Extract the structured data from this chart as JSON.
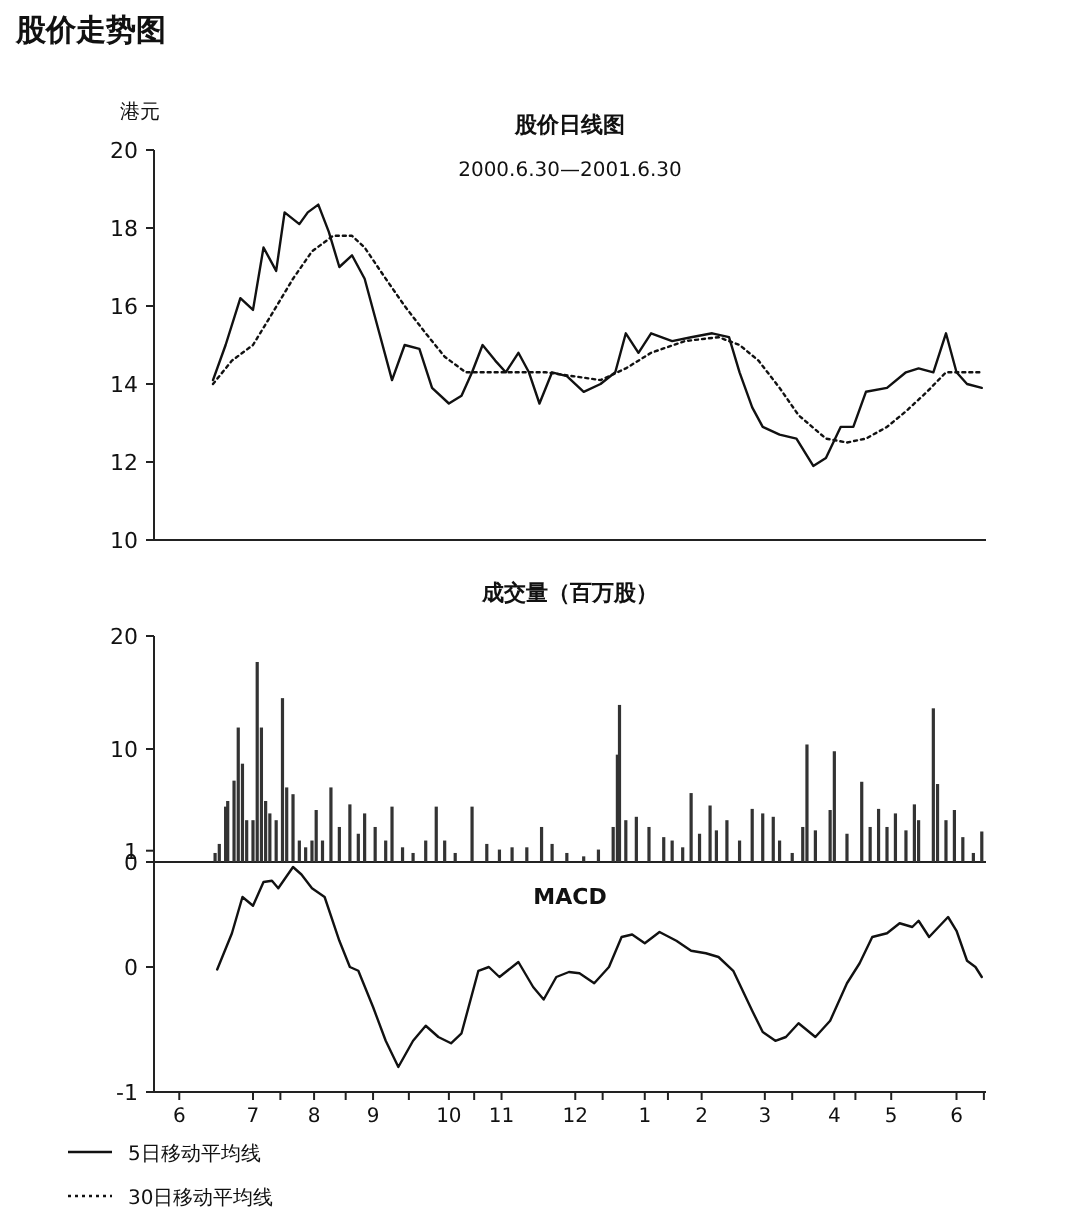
{
  "chart_data": [
    {
      "type": "line",
      "title": "股价日线图",
      "subtitle": "2000.6.30—2001.6.30",
      "ylabel": "港元",
      "annotations": [
        "股价走势图"
      ],
      "ylim": [
        10,
        20
      ],
      "yticks": [
        10,
        12,
        14,
        16,
        18,
        20
      ],
      "xlim": [
        "2000-06-02",
        "2001-07-02"
      ],
      "tick_labels": "y",
      "legend": "bottom",
      "series": [
        {
          "name": "5日移动平均线",
          "color": "#111111",
          "line_style": "solid",
          "x": [
            "2000-06-30",
            "2000-07-06",
            "2000-07-13",
            "2000-07-19",
            "2000-07-24",
            "2000-07-30",
            "2000-08-03",
            "2000-08-10",
            "2000-08-14",
            "2000-08-19",
            "2000-08-24",
            "2000-08-29",
            "2000-09-04",
            "2000-09-10",
            "2000-09-17",
            "2000-09-23",
            "2000-09-29",
            "2000-10-06",
            "2000-10-12",
            "2000-10-20",
            "2000-10-26",
            "2000-10-31",
            "2000-11-05",
            "2000-11-11",
            "2000-11-16",
            "2000-11-22",
            "2000-11-27",
            "2000-12-02",
            "2000-12-08",
            "2000-12-15",
            "2000-12-23",
            "2000-12-31",
            "2001-01-07",
            "2001-01-12",
            "2001-01-18",
            "2001-01-24",
            "2001-02-03",
            "2001-02-12",
            "2001-02-22",
            "2001-03-02",
            "2001-03-07",
            "2001-03-13",
            "2001-03-18",
            "2001-03-26",
            "2001-04-03",
            "2001-04-11",
            "2001-04-17",
            "2001-04-24",
            "2001-04-30",
            "2001-05-06",
            "2001-05-16",
            "2001-05-25",
            "2001-05-31",
            "2001-06-07",
            "2001-06-13",
            "2001-06-18",
            "2001-06-23",
            "2001-06-30"
          ],
          "values": [
            14.1,
            15.0,
            16.2,
            15.9,
            17.5,
            16.9,
            18.4,
            18.1,
            18.4,
            18.6,
            17.9,
            17.0,
            17.3,
            16.7,
            15.3,
            14.1,
            15.0,
            14.9,
            13.9,
            13.5,
            13.7,
            14.3,
            15.0,
            14.6,
            14.3,
            14.8,
            14.3,
            13.5,
            14.3,
            14.2,
            13.8,
            14.0,
            14.3,
            15.3,
            14.8,
            15.3,
            15.1,
            15.2,
            15.3,
            15.2,
            14.3,
            13.4,
            12.9,
            12.7,
            12.6,
            11.9,
            12.1,
            12.9,
            12.9,
            13.8,
            13.9,
            14.3,
            14.4,
            14.3,
            15.3,
            14.3,
            14.0,
            13.9
          ]
        },
        {
          "name": "30日移动平均线",
          "color": "#111111",
          "line_style": "dotted",
          "x": [
            "2000-06-30",
            "2000-07-09",
            "2000-07-19",
            "2000-07-28",
            "2000-08-07",
            "2000-08-16",
            "2000-08-26",
            "2000-09-04",
            "2000-09-10",
            "2000-09-20",
            "2000-09-29",
            "2000-10-09",
            "2000-10-18",
            "2000-10-28",
            "2000-11-10",
            "2000-11-22",
            "2000-12-05",
            "2000-12-18",
            "2000-12-31",
            "2001-01-12",
            "2001-01-24",
            "2001-02-09",
            "2001-02-25",
            "2001-03-07",
            "2001-03-16",
            "2001-03-26",
            "2001-04-04",
            "2001-04-17",
            "2001-04-27",
            "2001-05-06",
            "2001-05-16",
            "2001-05-25",
            "2001-06-04",
            "2001-06-13",
            "2001-06-23",
            "2001-06-30"
          ],
          "values": [
            14.0,
            14.6,
            15.0,
            15.8,
            16.7,
            17.4,
            17.8,
            17.8,
            17.5,
            16.7,
            16.0,
            15.3,
            14.7,
            14.3,
            14.3,
            14.3,
            14.3,
            14.2,
            14.1,
            14.4,
            14.8,
            15.1,
            15.2,
            15.0,
            14.6,
            13.9,
            13.2,
            12.6,
            12.5,
            12.6,
            12.9,
            13.3,
            13.8,
            14.3,
            14.3,
            14.3
          ]
        }
      ]
    },
    {
      "type": "bar",
      "title": "成交量（百万股）",
      "ylim": [
        0,
        20
      ],
      "yticks": [
        0,
        1,
        10,
        20
      ],
      "xlim": [
        "2000-06-02",
        "2001-07-02"
      ],
      "tick_labels": "y",
      "series": [
        {
          "color": "#333333",
          "x": [
            "2000-07-01",
            "2000-07-03",
            "2000-07-06",
            "2000-07-07",
            "2000-07-10",
            "2000-07-12",
            "2000-07-14",
            "2000-07-16",
            "2000-07-19",
            "2000-07-21",
            "2000-07-23",
            "2000-07-25",
            "2000-07-27",
            "2000-07-30",
            "2000-08-02",
            "2000-08-04",
            "2000-08-07",
            "2000-08-10",
            "2000-08-13",
            "2000-08-16",
            "2000-08-18",
            "2000-08-21",
            "2000-08-25",
            "2000-08-29",
            "2000-09-03",
            "2000-09-07",
            "2000-09-10",
            "2000-09-15",
            "2000-09-20",
            "2000-09-23",
            "2000-09-28",
            "2000-10-03",
            "2000-10-09",
            "2000-10-14",
            "2000-10-18",
            "2000-10-23",
            "2000-10-31",
            "2000-11-07",
            "2000-11-13",
            "2000-11-19",
            "2000-11-26",
            "2000-12-03",
            "2000-12-08",
            "2000-12-15",
            "2000-12-23",
            "2000-12-30",
            "2001-01-06",
            "2001-01-08",
            "2001-01-09",
            "2001-01-12",
            "2001-01-17",
            "2001-01-23",
            "2001-01-30",
            "2001-02-03",
            "2001-02-08",
            "2001-02-12",
            "2001-02-16",
            "2001-02-21",
            "2001-02-24",
            "2001-03-01",
            "2001-03-07",
            "2001-03-13",
            "2001-03-18",
            "2001-03-23",
            "2001-03-26",
            "2001-04-01",
            "2001-04-06",
            "2001-04-08",
            "2001-04-12",
            "2001-04-19",
            "2001-04-21",
            "2001-04-27",
            "2001-05-04",
            "2001-05-08",
            "2001-05-12",
            "2001-05-16",
            "2001-05-20",
            "2001-05-25",
            "2001-05-29",
            "2001-05-31",
            "2001-06-07",
            "2001-06-09",
            "2001-06-13",
            "2001-06-17",
            "2001-06-21",
            "2001-06-26",
            "2001-06-30"
          ],
          "values": [
            0.8,
            1.6,
            4.9,
            5.4,
            7.2,
            11.9,
            8.7,
            3.7,
            3.7,
            17.7,
            11.9,
            5.4,
            4.3,
            3.7,
            14.5,
            6.6,
            6.0,
            1.9,
            1.3,
            1.9,
            4.6,
            1.9,
            6.6,
            3.1,
            5.1,
            2.5,
            4.3,
            3.1,
            1.9,
            4.9,
            1.3,
            0.8,
            1.9,
            4.9,
            1.9,
            0.8,
            4.9,
            1.6,
            1.1,
            1.3,
            1.3,
            3.1,
            1.6,
            0.8,
            0.5,
            1.1,
            3.1,
            9.5,
            13.9,
            3.7,
            4.0,
            3.1,
            2.2,
            1.9,
            1.3,
            6.1,
            2.5,
            5.0,
            2.8,
            3.7,
            1.9,
            4.7,
            4.3,
            4.0,
            1.9,
            0.8,
            3.1,
            10.4,
            2.8,
            4.6,
            9.8,
            2.5,
            7.1,
            3.1,
            4.7,
            3.1,
            4.3,
            2.8,
            5.1,
            3.7,
            13.6,
            6.9,
            3.7,
            4.6,
            2.2,
            0.8,
            2.7
          ]
        }
      ]
    },
    {
      "type": "line",
      "title": "MACD",
      "ylim": [
        -1,
        0.84
      ],
      "yticks": [
        -1,
        0
      ],
      "xlim": [
        "2000-06-02",
        "2001-07-02"
      ],
      "xticks": [
        {
          "value": "2000-06-14",
          "label": "6"
        },
        {
          "value": "2000-07-19",
          "label": "7"
        },
        {
          "value": "2000-08-17",
          "label": "8"
        },
        {
          "value": "2000-09-14",
          "label": "9"
        },
        {
          "value": "2000-10-20",
          "label": "10"
        },
        {
          "value": "2000-11-14",
          "label": "11"
        },
        {
          "value": "2000-12-19",
          "label": "12"
        },
        {
          "value": "2001-01-21",
          "label": "1"
        },
        {
          "value": "2001-02-17",
          "label": "2"
        },
        {
          "value": "2001-03-19",
          "label": "3"
        },
        {
          "value": "2001-04-21",
          "label": "4"
        },
        {
          "value": "2001-05-18",
          "label": "5"
        },
        {
          "value": "2001-06-18",
          "label": "6"
        },
        {
          "value": "2000-08-01",
          "label": null
        },
        {
          "value": "2000-09-01",
          "label": null
        },
        {
          "value": "2000-10-01",
          "label": null
        },
        {
          "value": "2000-11-01",
          "label": null
        },
        {
          "value": "2001-01-01",
          "label": null
        },
        {
          "value": "2001-02-01",
          "label": null
        },
        {
          "value": "2001-04-01",
          "label": null
        },
        {
          "value": "2001-05-01",
          "label": null
        },
        {
          "value": "2001-07-01",
          "label": null
        }
      ],
      "series": [
        {
          "color": "#111111",
          "line_style": "solid",
          "x": [
            "2000-07-02",
            "2000-07-09",
            "2000-07-14",
            "2000-07-19",
            "2000-07-24",
            "2000-07-28",
            "2000-07-31",
            "2000-08-07",
            "2000-08-11",
            "2000-08-16",
            "2000-08-22",
            "2000-08-29",
            "2000-09-03",
            "2000-09-07",
            "2000-09-14",
            "2000-09-20",
            "2000-09-26",
            "2000-10-03",
            "2000-10-09",
            "2000-10-15",
            "2000-10-21",
            "2000-10-26",
            "2000-11-03",
            "2000-11-08",
            "2000-11-13",
            "2000-11-22",
            "2000-11-29",
            "2000-12-04",
            "2000-12-10",
            "2000-12-16",
            "2000-12-21",
            "2000-12-28",
            "2001-01-04",
            "2001-01-10",
            "2001-01-15",
            "2001-01-21",
            "2001-01-28",
            "2001-02-05",
            "2001-02-12",
            "2001-02-19",
            "2001-02-25",
            "2001-03-04",
            "2001-03-13",
            "2001-03-18",
            "2001-03-24",
            "2001-03-29",
            "2001-04-04",
            "2001-04-12",
            "2001-04-19",
            "2001-04-27",
            "2001-05-03",
            "2001-05-09",
            "2001-05-16",
            "2001-05-22",
            "2001-05-28",
            "2001-05-31",
            "2001-06-05",
            "2001-06-14",
            "2001-06-18",
            "2001-06-23",
            "2001-06-27",
            "2001-06-30"
          ],
          "values": [
            -0.02,
            0.27,
            0.56,
            0.49,
            0.68,
            0.69,
            0.63,
            0.8,
            0.74,
            0.63,
            0.56,
            0.21,
            0.0,
            -0.03,
            -0.32,
            -0.59,
            -0.8,
            -0.59,
            -0.47,
            -0.56,
            -0.61,
            -0.53,
            -0.03,
            0.0,
            -0.08,
            0.04,
            -0.16,
            -0.26,
            -0.08,
            -0.04,
            -0.05,
            -0.13,
            0.0,
            0.24,
            0.26,
            0.19,
            0.28,
            0.21,
            0.13,
            0.11,
            0.08,
            -0.03,
            -0.35,
            -0.52,
            -0.59,
            -0.56,
            -0.45,
            -0.56,
            -0.43,
            -0.13,
            0.03,
            0.24,
            0.27,
            0.35,
            0.32,
            0.37,
            0.24,
            0.4,
            0.29,
            0.05,
            0.0,
            -0.08
          ]
        }
      ]
    }
  ]
}
